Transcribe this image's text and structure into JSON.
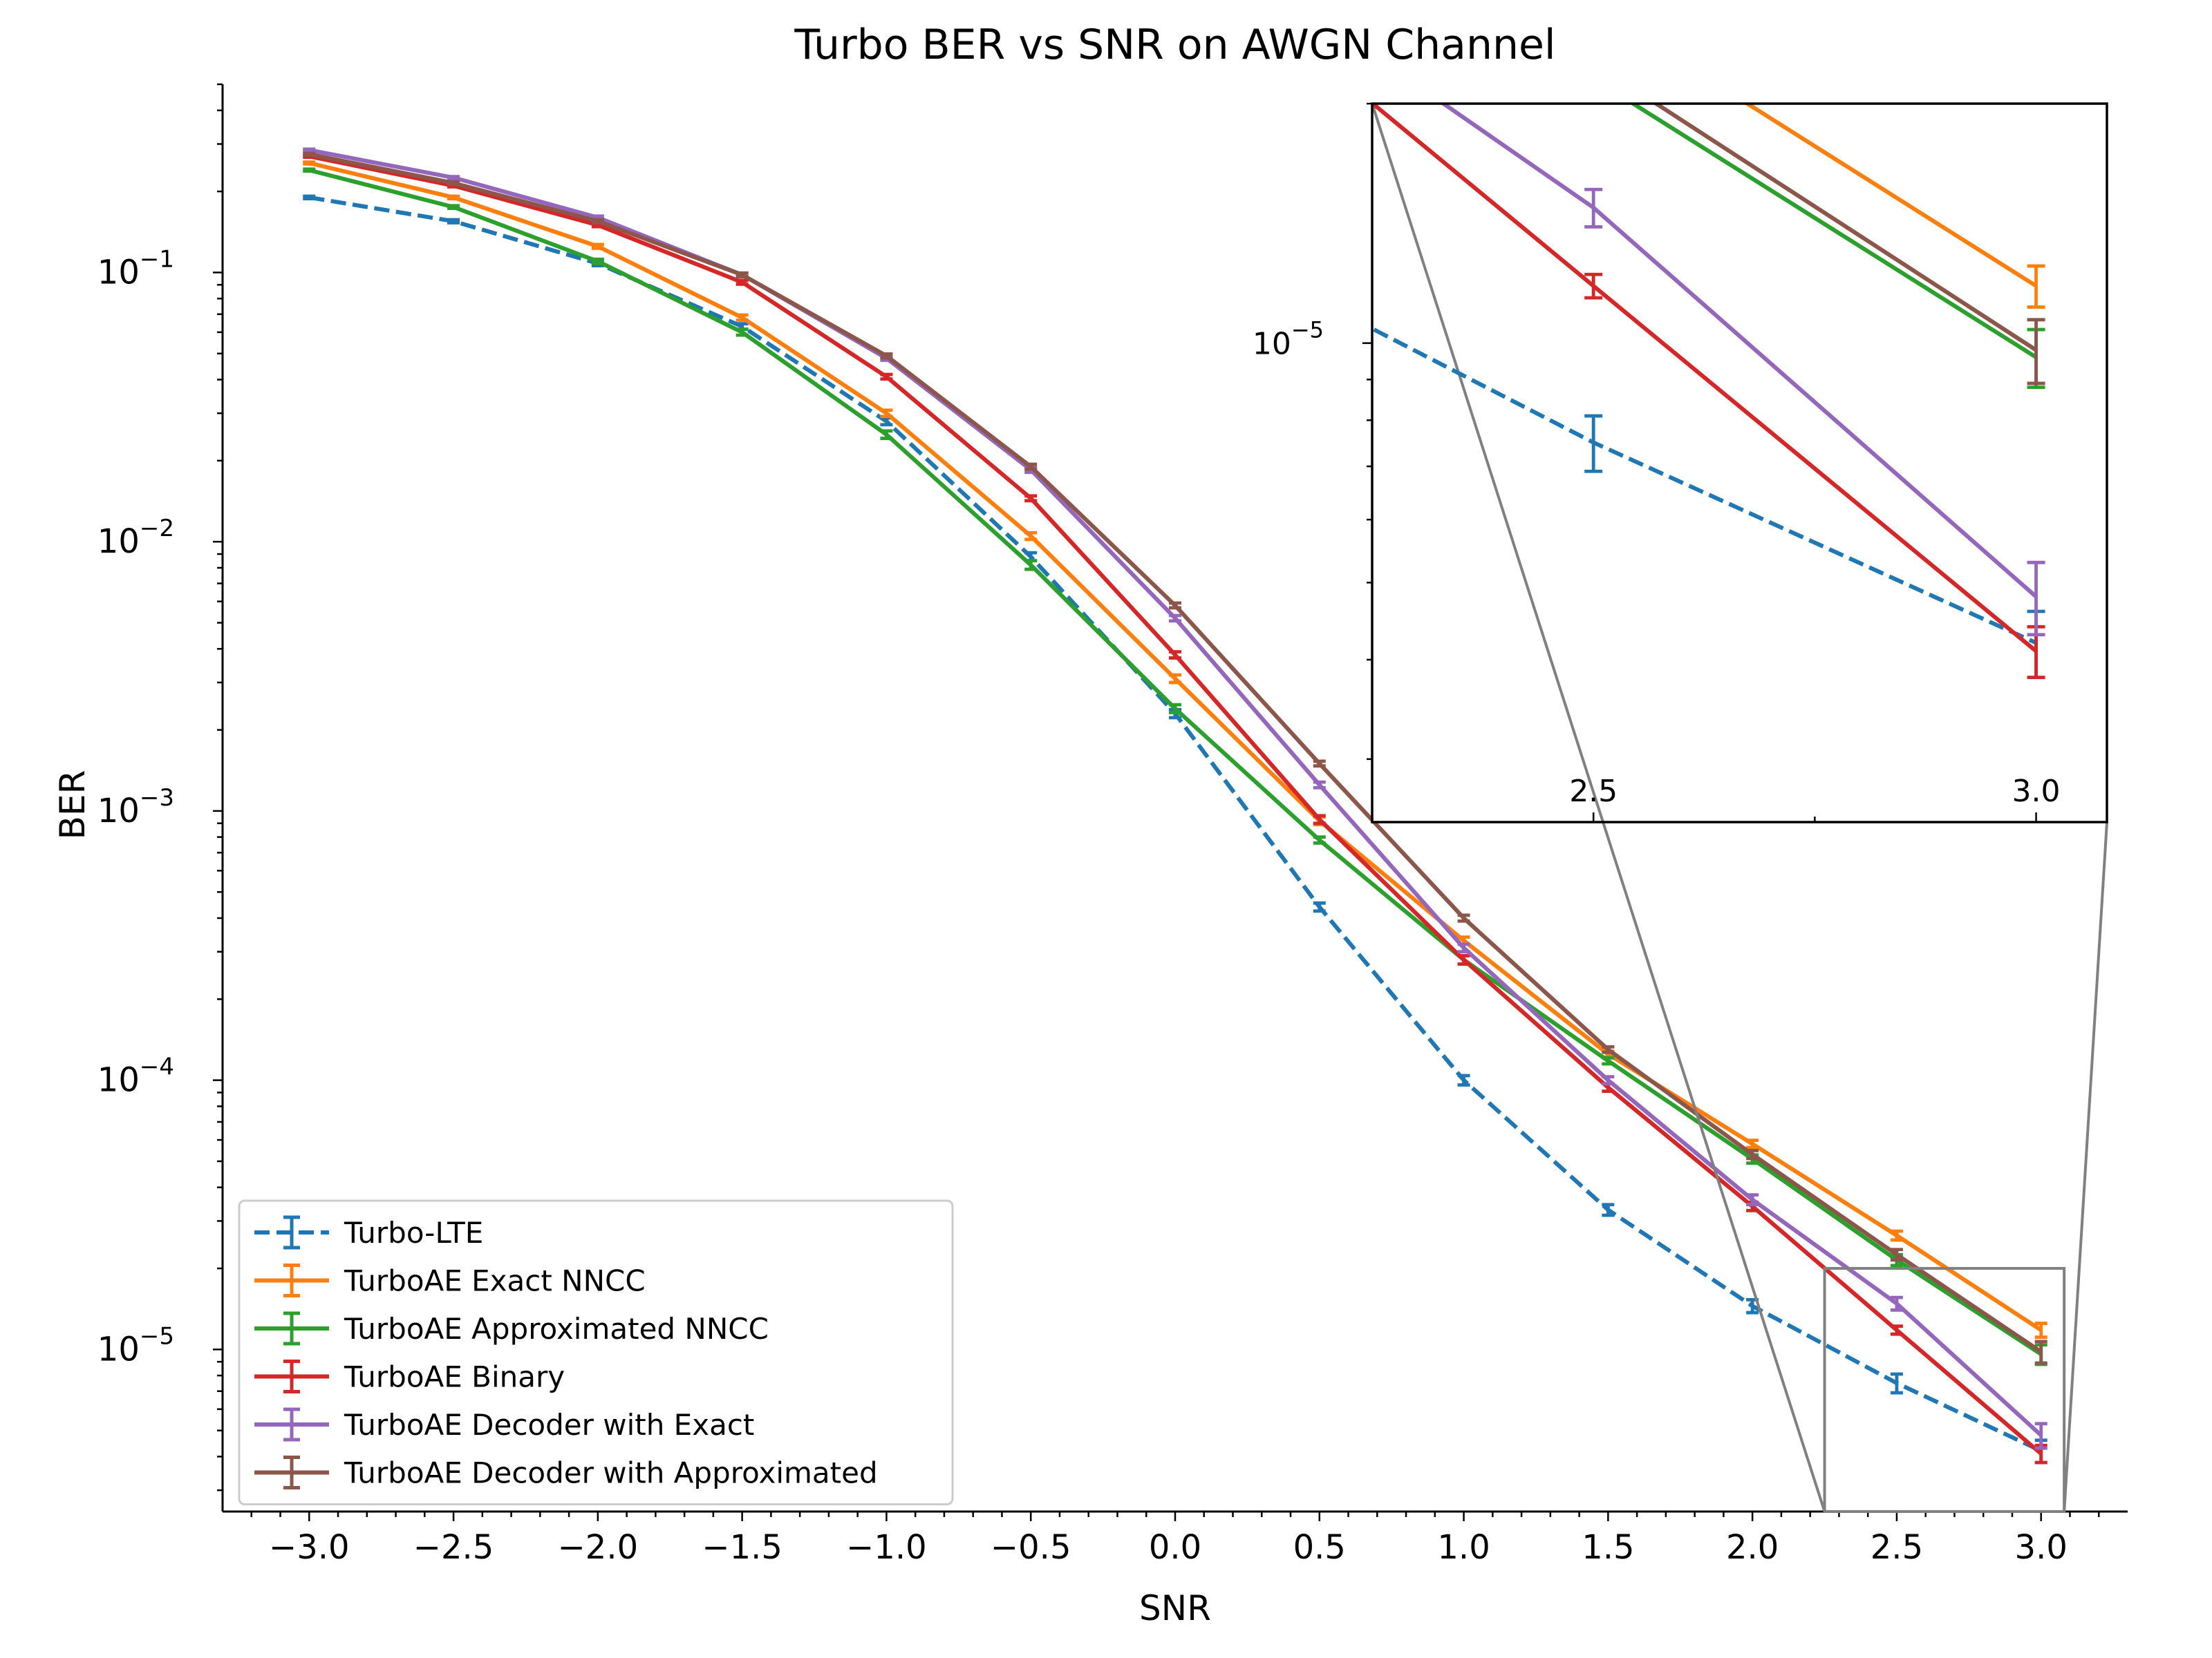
{
  "chart_data": {
    "type": "line",
    "title": "Turbo BER vs SNR on AWGN Channel",
    "xlabel": "SNR",
    "ylabel": "BER",
    "yscale": "log",
    "xlim": [
      -3.3,
      3.3
    ],
    "ylim": [
      2.5e-06,
      0.5
    ],
    "xticks": [
      -3.0,
      -2.5,
      -2.0,
      -1.5,
      -1.0,
      -0.5,
      0.0,
      0.5,
      1.0,
      1.5,
      2.0,
      2.5,
      3.0
    ],
    "xtick_labels": [
      "−3.0",
      "−2.5",
      "−2.0",
      "−1.5",
      "−1.0",
      "−0.5",
      "0.0",
      "0.5",
      "1.0",
      "1.5",
      "2.0",
      "2.5",
      "3.0"
    ],
    "yticks": [
      {
        "value": 0.1,
        "base": "10",
        "exp": "−1"
      },
      {
        "value": 0.01,
        "base": "10",
        "exp": "−2"
      },
      {
        "value": 0.001,
        "base": "10",
        "exp": "−3"
      },
      {
        "value": 0.0001,
        "base": "10",
        "exp": "−4"
      },
      {
        "value": 1e-05,
        "base": "10",
        "exp": "−5"
      }
    ],
    "legend_position": "lower-left",
    "x": [
      -3.0,
      -2.5,
      -2.0,
      -1.5,
      -1.0,
      -0.5,
      0.0,
      0.5,
      1.0,
      1.5,
      2.0,
      2.5,
      3.0
    ],
    "series": [
      {
        "name": "Turbo-LTE",
        "color": "#1f77b4",
        "dashed": true,
        "values": [
          0.19,
          0.155,
          0.108,
          0.063,
          0.028,
          0.0088,
          0.0023,
          0.00044,
          0.0001,
          3.3e-05,
          1.45e-05,
          7.5e-06,
          4.2e-06
        ],
        "errors": [
          0.002,
          0.002,
          0.002,
          0.0015,
          0.0008,
          0.0003,
          8e-05,
          1.5e-05,
          4e-06,
          1.5e-06,
          8e-07,
          6e-07,
          4e-07
        ]
      },
      {
        "name": "TurboAE Exact NNCC",
        "color": "#ff7f0e",
        "dashed": false,
        "values": [
          0.255,
          0.19,
          0.125,
          0.068,
          0.03,
          0.0105,
          0.0031,
          0.00092,
          0.00033,
          0.000125,
          5.8e-05,
          2.65e-05,
          1.18e-05
        ],
        "errors": [
          0.002,
          0.002,
          0.002,
          0.0015,
          0.0008,
          0.0003,
          0.0001,
          3e-05,
          1e-05,
          3e-06,
          1.8e-06,
          1e-06,
          7e-07
        ]
      },
      {
        "name": "TurboAE Approximated NNCC",
        "color": "#2ca02c",
        "dashed": false,
        "values": [
          0.24,
          0.175,
          0.11,
          0.06,
          0.025,
          0.0082,
          0.0024,
          0.00078,
          0.00028,
          0.000118,
          5.1e-05,
          2.15e-05,
          9.6e-06
        ],
        "errors": [
          0.002,
          0.002,
          0.002,
          0.0015,
          0.0008,
          0.0003,
          8e-05,
          2e-05,
          1e-05,
          3e-06,
          1.8e-06,
          1e-06,
          8e-07
        ]
      },
      {
        "name": "TurboAE Binary",
        "color": "#d62728",
        "dashed": false,
        "values": [
          0.27,
          0.21,
          0.15,
          0.092,
          0.041,
          0.0145,
          0.0038,
          0.00093,
          0.00028,
          9.4e-05,
          3.4e-05,
          1.18e-05,
          4.1e-06
        ],
        "errors": [
          0.002,
          0.002,
          0.002,
          0.0015,
          0.0008,
          0.0003,
          0.0001,
          3e-05,
          1e-05,
          3e-06,
          1.2e-06,
          4e-07,
          3e-07
        ]
      },
      {
        "name": "TurboAE Decoder with Exact",
        "color": "#9467bd",
        "dashed": false,
        "values": [
          0.285,
          0.225,
          0.16,
          0.098,
          0.048,
          0.0185,
          0.0052,
          0.00125,
          0.00031,
          0.0001,
          3.6e-05,
          1.48e-05,
          4.8e-06
        ],
        "errors": [
          0.002,
          0.002,
          0.002,
          0.0015,
          0.0008,
          0.0004,
          0.00012,
          3e-05,
          1e-05,
          3e-06,
          1.5e-06,
          8e-07,
          5e-07
        ]
      },
      {
        "name": "TurboAE Decoder with Approximated",
        "color": "#8c564b",
        "dashed": false,
        "values": [
          0.275,
          0.215,
          0.155,
          0.098,
          0.049,
          0.019,
          0.0058,
          0.0015,
          0.0004,
          0.00013,
          5.3e-05,
          2.25e-05,
          9.8e-06
        ],
        "errors": [
          0.002,
          0.002,
          0.002,
          0.0015,
          0.0008,
          0.0004,
          0.00012,
          3e-05,
          1e-05,
          3e-06,
          1.8e-06,
          1e-06,
          9e-07
        ]
      }
    ],
    "inset": {
      "xlim": [
        2.25,
        3.08
      ],
      "ylim": [
        2.5e-06,
        2e-05
      ],
      "xticks": [
        2.5,
        3.0
      ],
      "xtick_labels": [
        "2.5",
        "3.0"
      ],
      "ytick": {
        "value": 1e-05,
        "base": "10",
        "exp": "−5"
      },
      "connector_color": "#808080"
    }
  }
}
